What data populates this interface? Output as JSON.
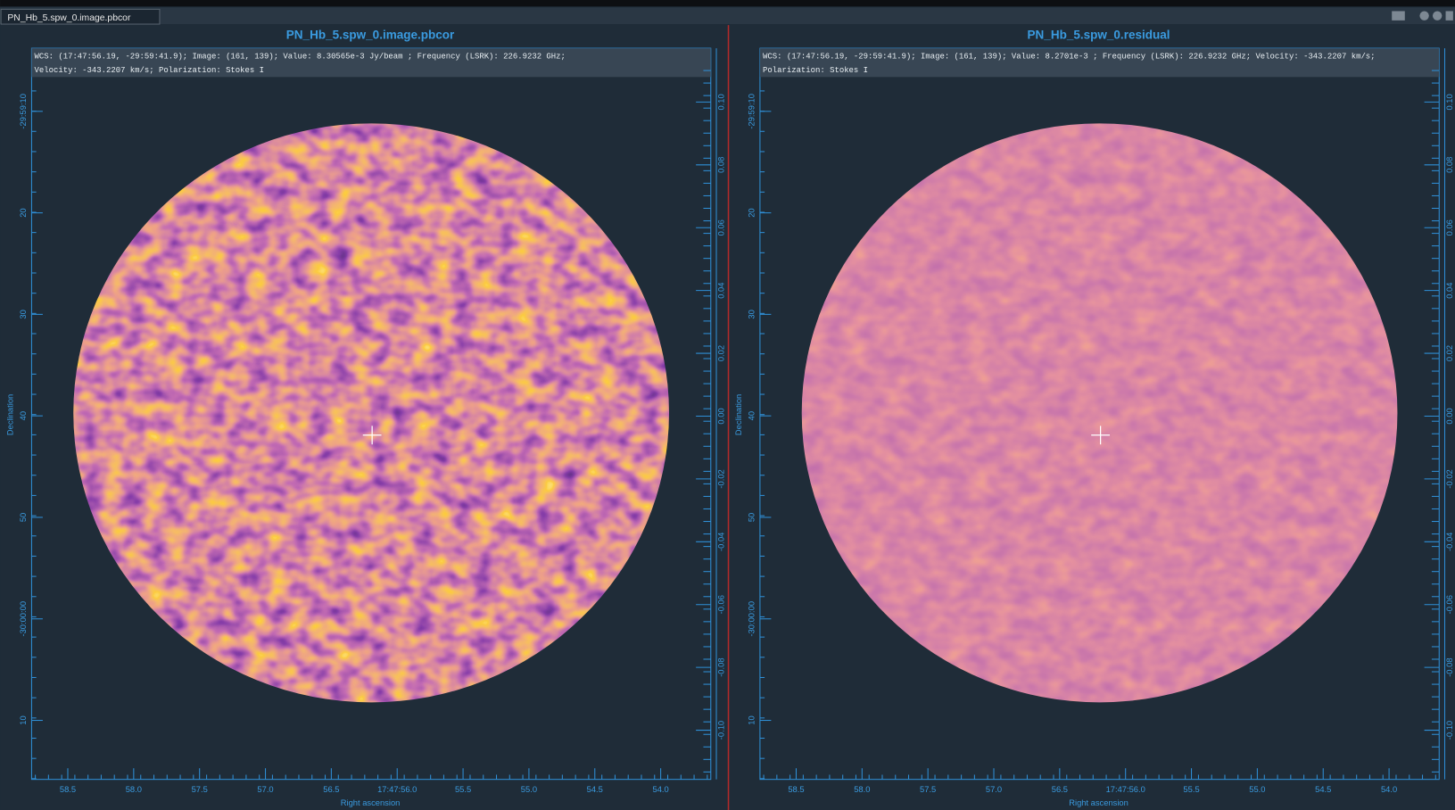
{
  "tab": "PN_Hb_5.spw_0.image.pbcor",
  "panels": [
    {
      "title": "PN_Hb_5.spw_0.image.pbcor",
      "info": [
        "WCS: (17:47:56.19, -29:59:41.9); Image: (161, 139); Value:  8.30565e-3 Jy/beam ; Frequency (LSRK): 226.9232 GHz;",
        "Velocity: -343.2207 km/s; Polarization: Stokes I"
      ],
      "x_axis_label": "Right ascension",
      "y_axis_label": "Declination",
      "ra_ticks": [
        "58.5",
        "58.0",
        "57.5",
        "57.0",
        "56.5",
        "17:47:56.0",
        "55.5",
        "55.0",
        "54.5",
        "54.0"
      ],
      "dec_ticks": [
        "-29:59:10",
        "20",
        "30",
        "40",
        "50",
        "-30:00:00",
        "10"
      ],
      "scale_ticks": [
        "0.10",
        "0.08",
        "0.06",
        "0.04",
        "0.02",
        "0.00",
        "-0.02",
        "-0.04",
        "-0.06",
        "-0.08",
        "-0.10"
      ]
    },
    {
      "title": "PN_Hb_5.spw_0.residual",
      "info": [
        "WCS: (17:47:56.19, -29:59:41.9); Image: (161, 139); Value:  8.2701e-3 ; Frequency (LSRK): 226.9232 GHz; Velocity: -343.2207 km/s;",
        "Polarization: Stokes I"
      ],
      "x_axis_label": "Right ascension",
      "y_axis_label": "Declination",
      "ra_ticks": [
        "58.5",
        "58.0",
        "57.5",
        "57.0",
        "56.5",
        "17:47:56.0",
        "55.5",
        "55.0",
        "54.5",
        "54.0"
      ],
      "dec_ticks": [
        "-29:59:10",
        "20",
        "30",
        "40",
        "50",
        "-30:00:00",
        "10"
      ],
      "scale_ticks": [
        "0.10",
        "0.08",
        "0.06",
        "0.04",
        "0.02",
        "0.00",
        "-0.02",
        "-0.04",
        "-0.06",
        "-0.08",
        "-0.10"
      ]
    }
  ]
}
